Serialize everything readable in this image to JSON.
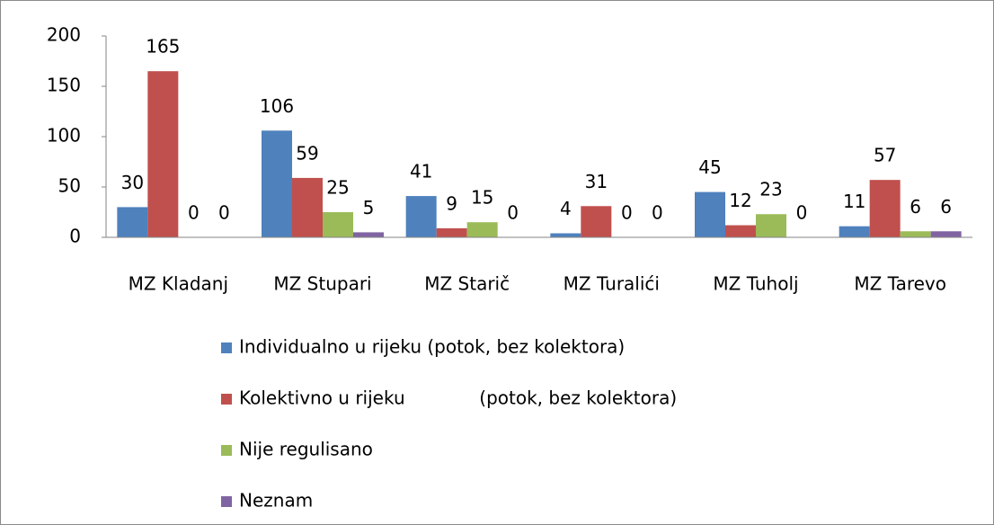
{
  "chart_data": {
    "type": "bar",
    "categories": [
      "MZ Kladanj",
      "MZ Stupari",
      "MZ Starič",
      "MZ Turalići",
      "MZ Tuholj",
      "MZ Tarevo"
    ],
    "series": [
      {
        "name": "Individualno u rijeku (potok, bez kolektora)",
        "color": "#4f81bd",
        "values": [
          30,
          106,
          41,
          4,
          45,
          11
        ]
      },
      {
        "name": "Kolektivno u rijeku             (potok, bez kolektora)",
        "color": "#c0504d",
        "values": [
          165,
          59,
          9,
          31,
          12,
          57
        ]
      },
      {
        "name": "Nije regulisano",
        "color": "#9bbb59",
        "values": [
          0,
          25,
          15,
          0,
          23,
          6
        ]
      },
      {
        "name": "Neznam",
        "color": "#8064a2",
        "values": [
          0,
          5,
          0,
          0,
          0,
          6
        ]
      }
    ],
    "ylim": [
      0,
      200
    ],
    "yticks": [
      0,
      50,
      100,
      150,
      200
    ],
    "grid": false,
    "legend": "bottom"
  }
}
